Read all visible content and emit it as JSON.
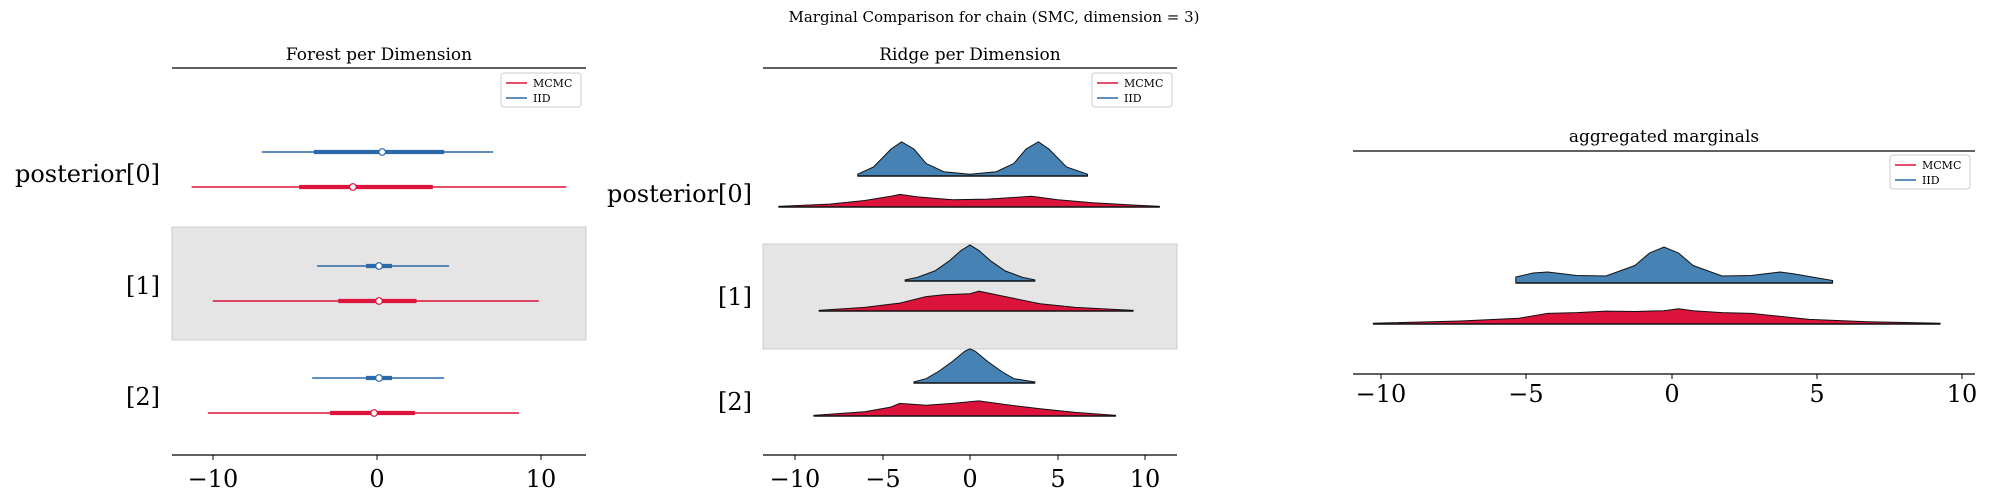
{
  "suptitle": "Marginal Comparison for chain (SMC, dimension = 3)",
  "colors": {
    "mcmc": "#dc143c",
    "iid": "#2b6aa8",
    "iid_fill": "#4682b4",
    "shade": "#e5e5e5"
  },
  "chart_data": [
    {
      "type": "forest",
      "title": "Forest per Dimension",
      "xlim": [
        -12.7,
        12.7
      ],
      "xticks": [
        "−10",
        "0",
        "10"
      ],
      "xtick_values": [
        -10,
        0,
        10
      ],
      "legend": [
        "MCMC",
        "IID"
      ],
      "legend_position": "top-right",
      "row_labels": [
        "posterior[0]",
        "[1]",
        "[2]"
      ],
      "shaded_rows": [
        1
      ],
      "rows": [
        {
          "IID": {
            "hdi": [
              -7.2,
              7.0
            ],
            "iqr": [
              -4.0,
              4.0
            ],
            "median": 0.2
          },
          "MCMC": {
            "hdi": [
              -11.5,
              11.5
            ],
            "iqr": [
              -4.9,
              3.3
            ],
            "median": -1.6
          }
        },
        {
          "IID": {
            "hdi": [
              -3.8,
              4.3
            ],
            "iqr": [
              -0.8,
              0.8
            ],
            "median": 0.0
          },
          "MCMC": {
            "hdi": [
              -10.2,
              9.8
            ],
            "iqr": [
              -2.5,
              2.3
            ],
            "median": 0.0
          }
        },
        {
          "IID": {
            "hdi": [
              -4.1,
              4.0
            ],
            "iqr": [
              -0.8,
              0.8
            ],
            "median": 0.0
          },
          "MCMC": {
            "hdi": [
              -10.5,
              8.6
            ],
            "iqr": [
              -3.0,
              2.2
            ],
            "median": -0.3
          }
        }
      ]
    },
    {
      "type": "ridge",
      "title": "Ridge per Dimension",
      "xlim": [
        -11.8,
        11.8
      ],
      "xticks": [
        "−10",
        "−5",
        "0",
        "5",
        "10"
      ],
      "xtick_values": [
        -10,
        -5,
        0,
        5,
        10
      ],
      "legend": [
        "MCMC",
        "IID"
      ],
      "legend_position": "top-right",
      "row_labels": [
        "posterior[0]",
        "[1]",
        "[2]"
      ],
      "shaded_rows": [
        1
      ],
      "rows": [
        {
          "IID": {
            "x": [
              -6.4,
              -5.5,
              -4.5,
              -3.9,
              -3.2,
              -2.5,
              -1.5,
              0,
              1.5,
              2.5,
              3.2,
              3.9,
              4.5,
              5.5,
              6.7
            ],
            "y": [
              0.05,
              0.25,
              0.75,
              0.95,
              0.75,
              0.35,
              0.12,
              0.05,
              0.12,
              0.35,
              0.75,
              0.95,
              0.75,
              0.25,
              0.05
            ]
          },
          "MCMC": {
            "x": [
              -10.9,
              -8,
              -6,
              -4.5,
              -4,
              -3,
              -1,
              1,
              3,
              3.5,
              5,
              7,
              9,
              10.8
            ],
            "y": [
              0.02,
              0.08,
              0.18,
              0.3,
              0.35,
              0.28,
              0.2,
              0.22,
              0.28,
              0.3,
              0.2,
              0.12,
              0.06,
              0.02
            ]
          }
        },
        {
          "IID": {
            "x": [
              -3.7,
              -3,
              -2,
              -1.2,
              -0.5,
              0,
              0.5,
              1.2,
              2,
              3,
              3.7
            ],
            "y": [
              0.03,
              0.1,
              0.28,
              0.55,
              0.85,
              1.0,
              0.85,
              0.55,
              0.28,
              0.1,
              0.03
            ]
          },
          "MCMC": {
            "x": [
              -8.6,
              -6,
              -4,
              -2.5,
              -1.5,
              0,
              0.5,
              1.5,
              2.5,
              4,
              6,
              9.3
            ],
            "y": [
              0.02,
              0.1,
              0.22,
              0.4,
              0.45,
              0.48,
              0.55,
              0.45,
              0.35,
              0.2,
              0.1,
              0.02
            ]
          }
        },
        {
          "IID": {
            "x": [
              -3.2,
              -2.5,
              -1.8,
              -1,
              -0.3,
              0,
              0.3,
              1,
              1.8,
              2.5,
              3.7
            ],
            "y": [
              0.03,
              0.12,
              0.32,
              0.6,
              0.88,
              0.95,
              0.88,
              0.6,
              0.32,
              0.12,
              0.03
            ]
          },
          "MCMC": {
            "x": [
              -8.9,
              -6,
              -4.5,
              -4,
              -2.5,
              -1,
              0.5,
              2,
              4,
              6,
              8.3
            ],
            "y": [
              0.02,
              0.12,
              0.25,
              0.35,
              0.3,
              0.35,
              0.42,
              0.32,
              0.2,
              0.1,
              0.02
            ]
          }
        }
      ]
    },
    {
      "type": "area",
      "title": "aggregated marginals",
      "xlim": [
        -10.7,
        10.7
      ],
      "xticks": [
        "−10",
        "−5",
        "0",
        "5",
        "10"
      ],
      "xtick_values": [
        -10,
        -5,
        0,
        5,
        10
      ],
      "legend": [
        "MCMC",
        "IID"
      ],
      "legend_position": "top-right",
      "series": [
        {
          "name": "IID",
          "x": [
            -5.1,
            -4.5,
            -4,
            -3,
            -2,
            -1,
            -0.5,
            0,
            0.5,
            1,
            2,
            3,
            4,
            4.5,
            5.8
          ],
          "y": [
            0.12,
            0.2,
            0.22,
            0.15,
            0.14,
            0.35,
            0.6,
            0.72,
            0.6,
            0.35,
            0.14,
            0.15,
            0.22,
            0.18,
            0.05
          ]
        },
        {
          "name": "MCMC",
          "x": [
            -10,
            -7,
            -5,
            -4,
            -3,
            -2,
            -1,
            0,
            0.5,
            1,
            2,
            3,
            4,
            5,
            7,
            9.5
          ],
          "y": [
            0.02,
            0.08,
            0.15,
            0.28,
            0.3,
            0.34,
            0.33,
            0.35,
            0.4,
            0.35,
            0.3,
            0.28,
            0.2,
            0.12,
            0.06,
            0.02
          ]
        }
      ]
    }
  ]
}
